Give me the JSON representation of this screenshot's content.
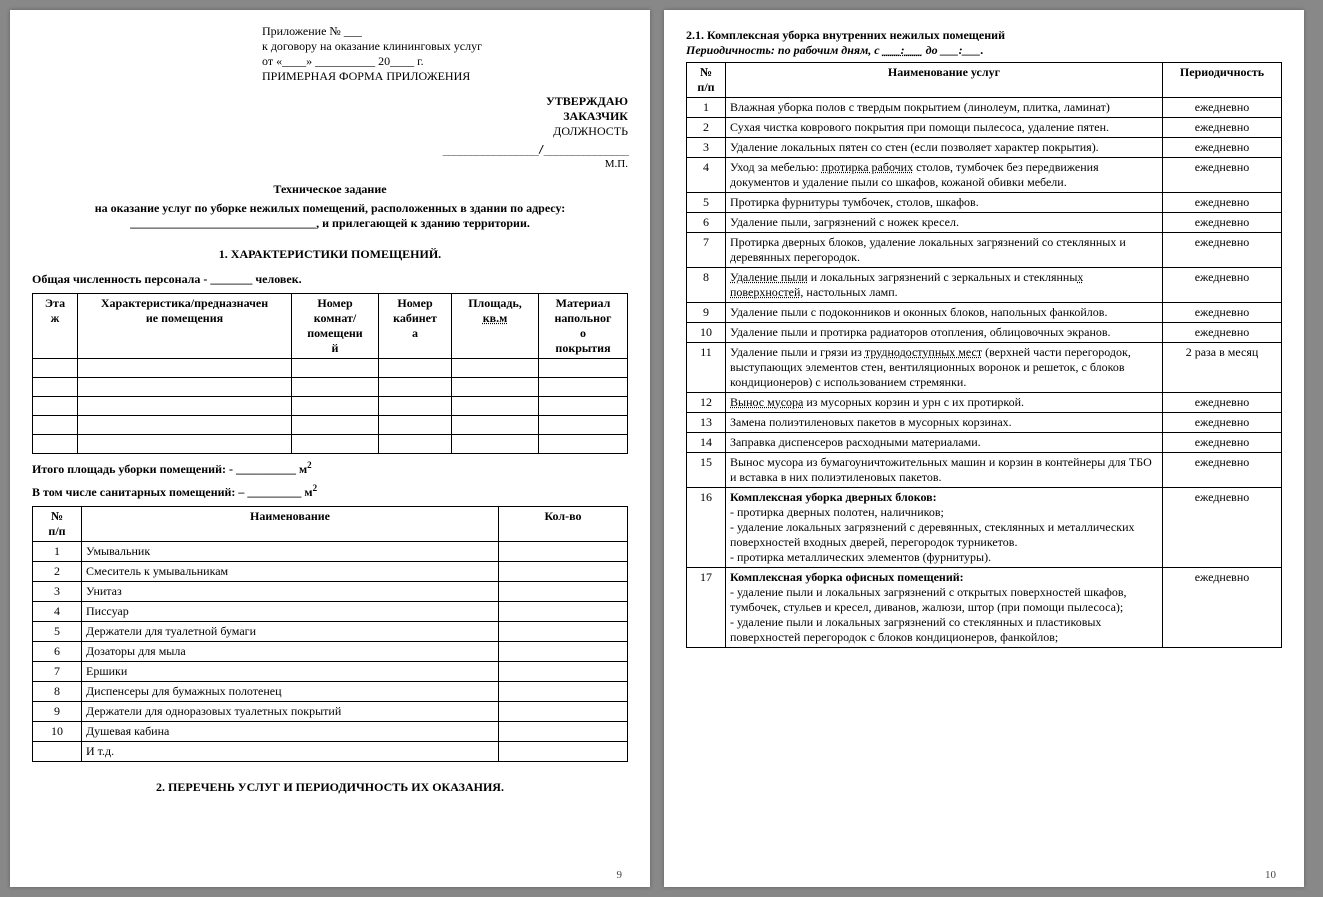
{
  "page_left": {
    "appendix": {
      "l1": "Приложение № ___",
      "l2": "к договору на оказание клининговых услуг",
      "l3": "от «____» __________ 20____ г.",
      "l4": "ПРИМЕРНАЯ ФОРМА ПРИЛОЖЕНИЯ"
    },
    "approve": {
      "l1": "УТВЕРЖДАЮ",
      "l2": "ЗАКАЗЧИК",
      "l3": "ДОЛЖНОСТЬ",
      "sig": "_________________/_______________",
      "mp": "М.П."
    },
    "title": "Техническое задание",
    "subtitle1": "на оказание услуг по уборке нежилых помещений, расположенных в здании по адресу:",
    "subtitle2_prefix": "_______________________________",
    "subtitle2_suffix": ", и прилегающей к зданию территории.",
    "section1": "1. ХАРАКТЕРИСТИКИ ПОМЕЩЕНИЙ.",
    "staff_line": "Общая численность персонала - _______ человек.",
    "table1": {
      "headers": [
        "Эта\nж",
        "Характеристика/предназначен\nие помещения",
        "Номер\nкомнат/\nпомещени\nй",
        "Номер\nкабинет\nа",
        "Площадь,",
        "кв.м",
        "Материал\nнапольног\nо\nпокрытия"
      ]
    },
    "total_area": "Итого площадь уборки помещений: - __________ м",
    "san_area": "В том числе санитарных помещений: – _________ м",
    "table2": {
      "h1": "№\nп/п",
      "h2": "Наименование",
      "h3": "Кол-во",
      "rows": [
        [
          "1",
          "Умывальник"
        ],
        [
          "2",
          "Смеситель к умывальникам"
        ],
        [
          "3",
          "Унитаз"
        ],
        [
          "4",
          "Писсуар"
        ],
        [
          "5",
          "Держатели для туалетной бумаги"
        ],
        [
          "6",
          "Дозаторы для мыла"
        ],
        [
          "7",
          "Ершики"
        ],
        [
          "8",
          "Диспенсеры для бумажных полотенец"
        ],
        [
          "9",
          "Держатели для одноразовых туалетных покрытий"
        ],
        [
          "10",
          "Душевая кабина"
        ],
        [
          "",
          "И т.д."
        ]
      ]
    },
    "section2": "2. ПЕРЕЧЕНЬ УСЛУГ И ПЕРИОДИЧНОСТЬ ИХ ОКАЗАНИЯ.",
    "pagenum": "9"
  },
  "page_right": {
    "heading": "2.1. Комплексная уборка внутренних нежилых помещений",
    "sub": "Периодичность: по рабочим дням, с ___:___ до ___:___.",
    "th": [
      "№\nп/п",
      "Наименование услуг",
      "Периодичность"
    ],
    "rows": [
      {
        "n": "1",
        "t": "Влажная уборка полов с твердым покрытием (линолеум, плитка, ламинат)",
        "f": "ежедневно"
      },
      {
        "n": "2",
        "t": "Сухая чистка коврового покрытия при помощи пылесоса, удаление пятен.",
        "f": "ежедневно"
      },
      {
        "n": "3",
        "t": "Удаление локальных пятен со стен (если позволяет характер покрытия).",
        "f": "ежедневно"
      },
      {
        "n": "4",
        "t": "Уход за мебелью: <u>протирка рабочих</u> столов, тумбочек без передвижения документов и удаление пыли со шкафов, кожаной обивки мебели.",
        "f": "ежедневно"
      },
      {
        "n": "5",
        "t": "Протирка фурнитуры тумбочек, столов, шкафов.",
        "f": "ежедневно"
      },
      {
        "n": "6",
        "t": "Удаление пыли, загрязнений с ножек кресел.",
        "f": "ежедневно"
      },
      {
        "n": "7",
        "t": "Протирка дверных блоков, удаление локальных загрязнений со стеклянных и деревянных перегородок.",
        "f": "ежедневно"
      },
      {
        "n": "8",
        "t": "<u>Удаление пыли</u> и локальных загрязнений с зеркальных и стеклянны<u>х поверхностей</u>, настольных ламп.",
        "f": "ежедневно"
      },
      {
        "n": "9",
        "t": "Удаление пыли с подоконников и оконных блоков, напольных фанкойлов.",
        "f": "ежедневно"
      },
      {
        "n": "10",
        "t": "Удаление пыли и протирка радиаторов отопления, облицовочных экранов.",
        "f": "ежедневно"
      },
      {
        "n": "11",
        "t": "Удаление пыли и грязи из <u>труднодоступных мест</u> (верхней части перегородок, выступающих элементов стен, вентиляционных воронок и решеток, с блоков кондиционеров) с использованием стремянки.",
        "f": "2 раза в месяц"
      },
      {
        "n": "12",
        "t": "<u>Вынос мусора</u> из мусорных корзин и урн с их протиркой.",
        "f": "ежедневно"
      },
      {
        "n": "13",
        "t": "Замена полиэтиленовых пакетов в мусорных корзинах.",
        "f": "ежедневно"
      },
      {
        "n": "14",
        "t": "Заправка диспенсеров расходными материалами.",
        "f": "ежедневно"
      },
      {
        "n": "15",
        "t": "Вынос мусора из бумагоуничтожительных машин и корзин в контейнеры для ТБО и вставка в них полиэтиленовых пакетов.",
        "f": "ежедневно"
      },
      {
        "n": "16",
        "t": "<b>Комплексная уборка дверных блоков:</b><br>- протирка дверных полотен, наличников;<br>- удаление локальных загрязнений с деревянных, стеклянных и металлических поверхностей входных дверей, перегородок турникетов.<br>- протирка металлических элементов (фурнитуры).",
        "f": "ежедневно"
      },
      {
        "n": "17",
        "t": "<b>Комплексная уборка офисных помещений:</b><br>- удаление пыли и локальных загрязнений с открытых поверхностей шкафов, тумбочек, стульев и кресел, диванов, жалюзи, штор (при помощи пылесоса);<br>- удаление пыли и локальных загрязнений со стеклянных и пластиковых поверхностей перегородок с блоков кондиционеров, фанкойлов;",
        "f": "ежедневно"
      }
    ],
    "pagenum": "10"
  }
}
